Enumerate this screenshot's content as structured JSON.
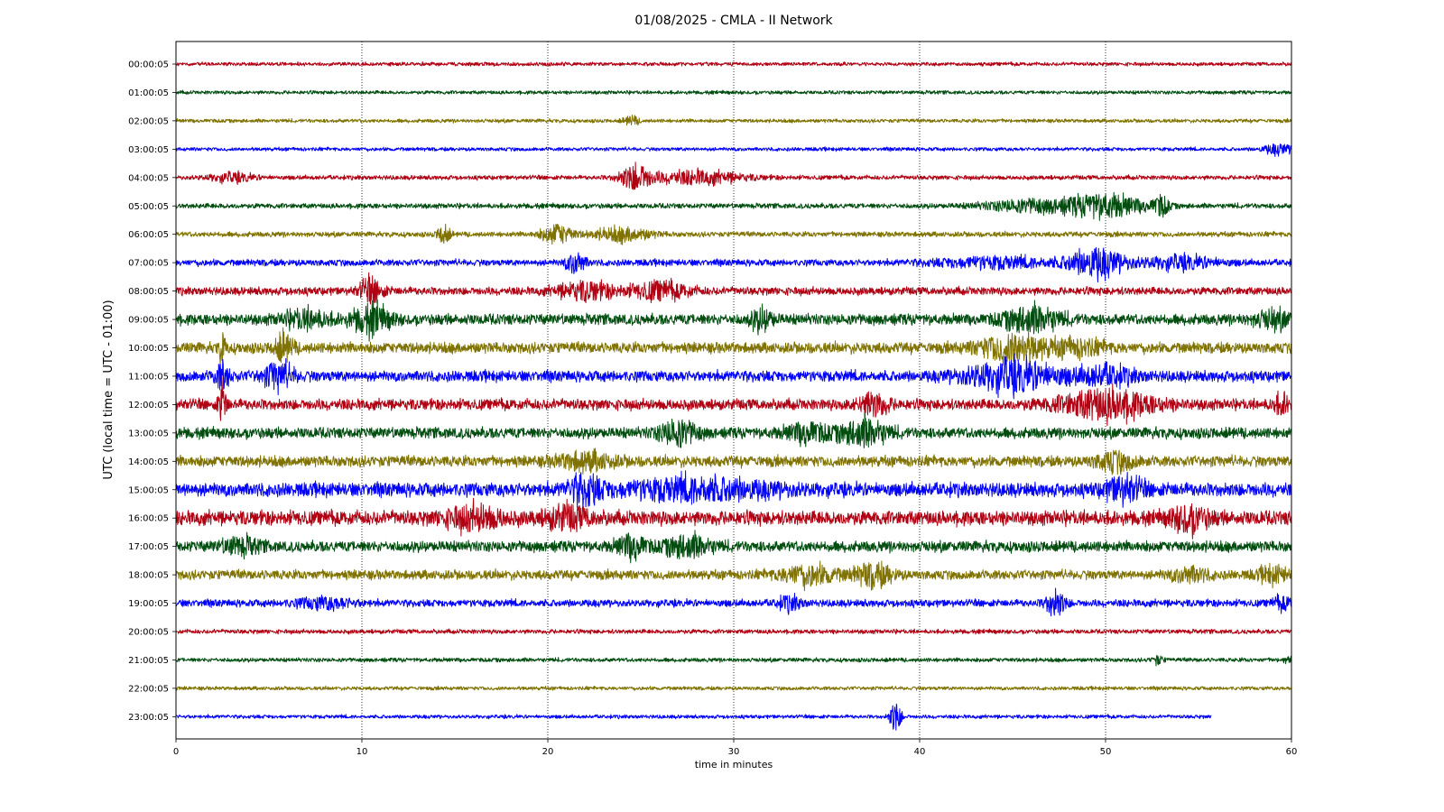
{
  "chart_data": {
    "type": "line",
    "title": "01/08/2025 - CMLA - II Network",
    "xlabel": "time in minutes",
    "ylabel": "UTC (local time = UTC - 01:00)",
    "xlim": [
      0,
      60
    ],
    "x_ticks": [
      "0",
      "10",
      "20",
      "30",
      "40",
      "50",
      "60"
    ],
    "grid": "vertical dotted at 10-minute intervals",
    "colors": [
      "#b00012",
      "#004d0f",
      "#7f7200",
      "#0000ff"
    ],
    "rows": [
      {
        "label": "00:00:05",
        "amplitude": 0.25,
        "events": []
      },
      {
        "label": "01:00:05",
        "amplitude": 0.25,
        "events": []
      },
      {
        "label": "02:00:05",
        "amplitude": 0.25,
        "events": [
          {
            "t": 24.5,
            "a": 0.55,
            "w": 0.4
          }
        ]
      },
      {
        "label": "03:00:05",
        "amplitude": 0.25,
        "events": [
          {
            "t": 59.3,
            "a": 0.6,
            "w": 0.8
          }
        ]
      },
      {
        "label": "04:00:05",
        "amplitude": 0.3,
        "events": [
          {
            "t": 3.0,
            "a": 0.5,
            "w": 1.2
          },
          {
            "t": 24.7,
            "a": 1.5,
            "w": 0.8
          },
          {
            "t": 28.0,
            "a": 0.8,
            "w": 2.5
          }
        ]
      },
      {
        "label": "05:00:05",
        "amplitude": 0.35,
        "events": [
          {
            "t": 46.0,
            "a": 0.7,
            "w": 2.5
          },
          {
            "t": 50.0,
            "a": 1.4,
            "w": 2.0
          },
          {
            "t": 53.0,
            "a": 1.2,
            "w": 0.4
          }
        ]
      },
      {
        "label": "06:00:05",
        "amplitude": 0.35,
        "events": [
          {
            "t": 14.4,
            "a": 1.3,
            "w": 0.3
          },
          {
            "t": 20.5,
            "a": 1.2,
            "w": 0.8
          },
          {
            "t": 24.0,
            "a": 0.8,
            "w": 1.5
          }
        ]
      },
      {
        "label": "07:00:05",
        "amplitude": 0.45,
        "events": [
          {
            "t": 21.5,
            "a": 1.3,
            "w": 0.5
          },
          {
            "t": 44.0,
            "a": 0.6,
            "w": 3.0
          },
          {
            "t": 49.5,
            "a": 1.7,
            "w": 1.5
          },
          {
            "t": 54.0,
            "a": 0.7,
            "w": 2.0
          }
        ]
      },
      {
        "label": "08:00:05",
        "amplitude": 0.55,
        "events": [
          {
            "t": 10.5,
            "a": 1.5,
            "w": 0.6
          },
          {
            "t": 22.0,
            "a": 1.0,
            "w": 1.5
          },
          {
            "t": 26.0,
            "a": 1.0,
            "w": 1.5
          }
        ]
      },
      {
        "label": "09:00:05",
        "amplitude": 0.75,
        "events": [
          {
            "t": 7.0,
            "a": 1.0,
            "w": 1.2
          },
          {
            "t": 10.5,
            "a": 1.6,
            "w": 1.0
          },
          {
            "t": 31.5,
            "a": 1.2,
            "w": 0.6
          },
          {
            "t": 46.0,
            "a": 1.4,
            "w": 1.5
          },
          {
            "t": 59.0,
            "a": 0.9,
            "w": 1.0
          }
        ]
      },
      {
        "label": "10:00:05",
        "amplitude": 0.75,
        "events": [
          {
            "t": 2.5,
            "a": 1.6,
            "w": 0.2
          },
          {
            "t": 5.8,
            "a": 1.5,
            "w": 0.5
          },
          {
            "t": 45.0,
            "a": 1.5,
            "w": 1.8
          },
          {
            "t": 48.5,
            "a": 0.8,
            "w": 1.5
          }
        ]
      },
      {
        "label": "11:00:05",
        "amplitude": 0.75,
        "events": [
          {
            "t": 2.5,
            "a": 1.4,
            "w": 0.4
          },
          {
            "t": 5.5,
            "a": 1.5,
            "w": 0.8
          },
          {
            "t": 45.0,
            "a": 1.7,
            "w": 2.5
          },
          {
            "t": 50.0,
            "a": 1.0,
            "w": 1.5
          }
        ]
      },
      {
        "label": "12:00:05",
        "amplitude": 0.75,
        "events": [
          {
            "t": 2.5,
            "a": 2.6,
            "w": 0.2
          },
          {
            "t": 37.5,
            "a": 1.3,
            "w": 0.8
          },
          {
            "t": 50.0,
            "a": 1.7,
            "w": 2.5
          },
          {
            "t": 59.5,
            "a": 1.0,
            "w": 0.5
          }
        ]
      },
      {
        "label": "13:00:05",
        "amplitude": 0.75,
        "events": [
          {
            "t": 27.0,
            "a": 1.4,
            "w": 1.0
          },
          {
            "t": 34.0,
            "a": 1.0,
            "w": 1.2
          },
          {
            "t": 37.0,
            "a": 1.5,
            "w": 1.2
          }
        ]
      },
      {
        "label": "14:00:05",
        "amplitude": 0.75,
        "events": [
          {
            "t": 22.0,
            "a": 0.9,
            "w": 1.5
          },
          {
            "t": 50.5,
            "a": 1.0,
            "w": 1.0
          }
        ]
      },
      {
        "label": "15:00:05",
        "amplitude": 0.95,
        "events": [
          {
            "t": 22.0,
            "a": 1.6,
            "w": 0.8
          },
          {
            "t": 28.0,
            "a": 1.1,
            "w": 4.0
          },
          {
            "t": 51.0,
            "a": 1.3,
            "w": 1.0
          }
        ]
      },
      {
        "label": "16:00:05",
        "amplitude": 1.0,
        "events": [
          {
            "t": 16.0,
            "a": 1.2,
            "w": 1.5
          },
          {
            "t": 21.0,
            "a": 1.2,
            "w": 1.2
          },
          {
            "t": 54.5,
            "a": 1.3,
            "w": 1.0
          }
        ]
      },
      {
        "label": "17:00:05",
        "amplitude": 0.75,
        "events": [
          {
            "t": 3.5,
            "a": 0.9,
            "w": 1.0
          },
          {
            "t": 24.5,
            "a": 1.2,
            "w": 0.8
          },
          {
            "t": 27.5,
            "a": 1.2,
            "w": 1.2
          }
        ]
      },
      {
        "label": "18:00:05",
        "amplitude": 0.65,
        "events": [
          {
            "t": 34.0,
            "a": 1.1,
            "w": 1.5
          },
          {
            "t": 37.5,
            "a": 1.3,
            "w": 1.0
          },
          {
            "t": 54.5,
            "a": 0.8,
            "w": 1.0
          },
          {
            "t": 59.0,
            "a": 0.8,
            "w": 0.8
          }
        ]
      },
      {
        "label": "19:00:05",
        "amplitude": 0.5,
        "events": [
          {
            "t": 8.0,
            "a": 0.6,
            "w": 1.5
          },
          {
            "t": 33.0,
            "a": 0.8,
            "w": 0.6
          },
          {
            "t": 47.3,
            "a": 1.6,
            "w": 0.5
          },
          {
            "t": 59.5,
            "a": 0.7,
            "w": 0.5
          }
        ]
      },
      {
        "label": "20:00:05",
        "amplitude": 0.3,
        "events": []
      },
      {
        "label": "21:00:05",
        "amplitude": 0.28,
        "events": [
          {
            "t": 52.8,
            "a": 0.5,
            "w": 0.3
          },
          {
            "t": 59.8,
            "a": 0.4,
            "w": 0.3
          }
        ]
      },
      {
        "label": "22:00:05",
        "amplitude": 0.25,
        "events": []
      },
      {
        "label": "23:00:05",
        "amplitude": 0.25,
        "end": 55.7,
        "events": [
          {
            "t": 38.7,
            "a": 1.9,
            "w": 0.3
          }
        ]
      }
    ]
  }
}
